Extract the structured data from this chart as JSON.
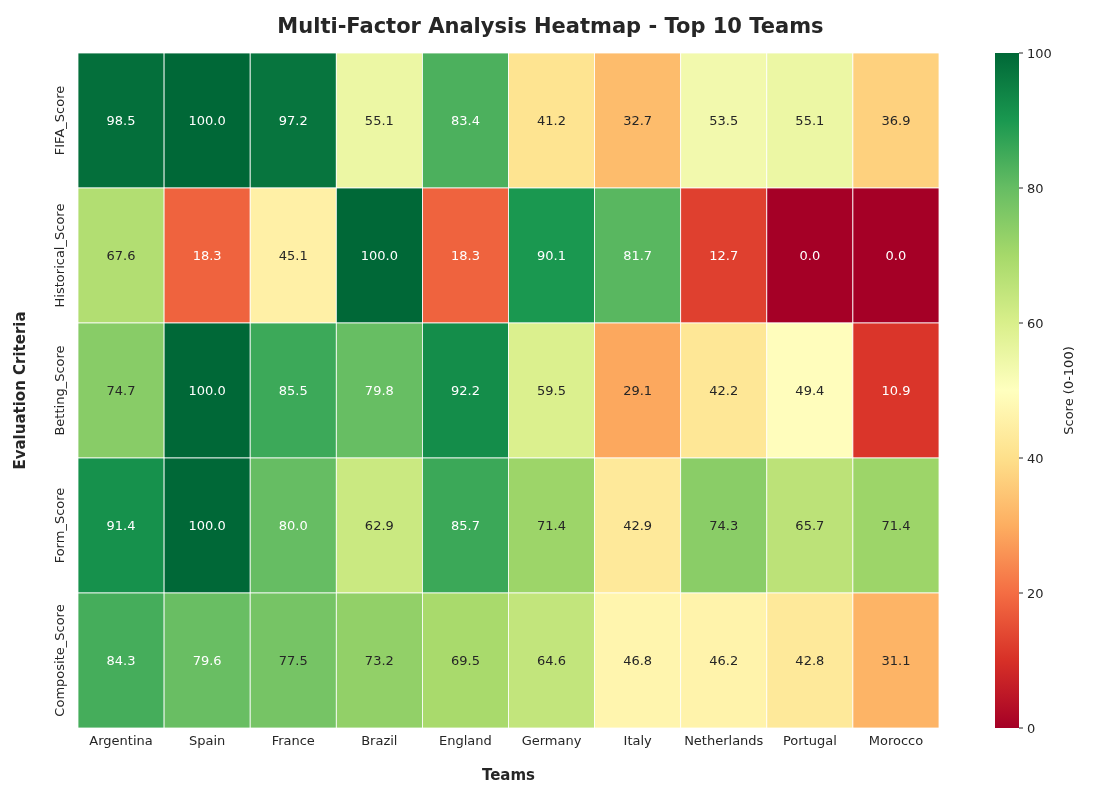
{
  "chart_data": {
    "type": "heatmap",
    "title": "Multi-Factor Analysis Heatmap - Top 10 Teams",
    "xlabel": "Teams",
    "ylabel": "Evaluation Criteria",
    "clabel": "Score (0-100)",
    "categories": [
      "Argentina",
      "Spain",
      "France",
      "Brazil",
      "England",
      "Germany",
      "Italy",
      "Netherlands",
      "Portugal",
      "Morocco"
    ],
    "y_categories": [
      "FIFA_Score",
      "Historical_Score",
      "Betting_Score",
      "Form_Score",
      "Composite_Score"
    ],
    "cells": [
      [
        98.5,
        100.0,
        97.2,
        55.1,
        83.4,
        41.2,
        32.7,
        53.5,
        55.1,
        36.9
      ],
      [
        67.6,
        18.3,
        45.1,
        100.0,
        18.3,
        90.1,
        81.7,
        12.7,
        0.0,
        0.0
      ],
      [
        74.7,
        100.0,
        85.5,
        79.8,
        92.2,
        59.5,
        29.1,
        42.2,
        49.4,
        10.9
      ],
      [
        91.4,
        100.0,
        80.0,
        62.9,
        85.7,
        71.4,
        42.9,
        74.3,
        65.7,
        71.4
      ],
      [
        84.3,
        79.6,
        77.5,
        73.2,
        69.5,
        64.6,
        46.8,
        46.2,
        42.8,
        31.1
      ]
    ],
    "cell_labels": [
      [
        "98.5",
        "100.0",
        "97.2",
        "55.1",
        "83.4",
        "41.2",
        "32.7",
        "53.5",
        "55.1",
        "36.9"
      ],
      [
        "67.6",
        "18.3",
        "45.1",
        "100.0",
        "18.3",
        "90.1",
        "81.7",
        "12.7",
        "0.0",
        "0.0"
      ],
      [
        "74.7",
        "100.0",
        "85.5",
        "79.8",
        "92.2",
        "59.5",
        "29.1",
        "42.2",
        "49.4",
        "10.9"
      ],
      [
        "91.4",
        "100.0",
        "80.0",
        "62.9",
        "85.7",
        "71.4",
        "42.9",
        "74.3",
        "65.7",
        "71.4"
      ],
      [
        "84.3",
        "79.6",
        "77.5",
        "73.2",
        "69.5",
        "64.6",
        "46.8",
        "46.2",
        "42.8",
        "31.1"
      ]
    ],
    "clim": [
      0,
      100
    ],
    "cticks": [
      0,
      20,
      40,
      60,
      80,
      100
    ]
  }
}
